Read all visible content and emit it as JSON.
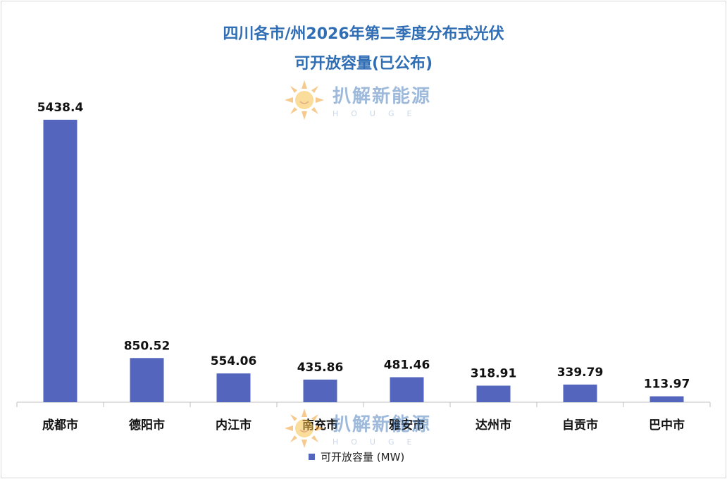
{
  "chart_data": {
    "type": "bar",
    "title": "四川各市/州2026年第二季度分布式光伏",
    "subtitle": "可开放容量(已公布)",
    "categories": [
      "成都市",
      "德阳市",
      "内江市",
      "南充市",
      "雅安市",
      "达州市",
      "自贡市",
      "巴中市"
    ],
    "series": [
      {
        "name": "可开放容量 (MW)",
        "values": [
          5438.4,
          850.52,
          554.06,
          435.86,
          481.46,
          318.91,
          339.79,
          113.97
        ],
        "labels": [
          "5438.4",
          "850.52",
          "554.06",
          "435.86",
          "481.46",
          "318.91",
          "339.79",
          "113.97"
        ],
        "color": "#5465bd"
      }
    ],
    "xlabel": "",
    "ylabel": "",
    "ylim": [
      0,
      6000
    ],
    "grid": false,
    "legend_position": "bottom"
  },
  "watermark": {
    "text": "扒解新能源",
    "subtext": "HOUGE"
  },
  "colors": {
    "title": "#2f6db4",
    "bar": "#5465bd",
    "axis": "#bfbfbf"
  }
}
